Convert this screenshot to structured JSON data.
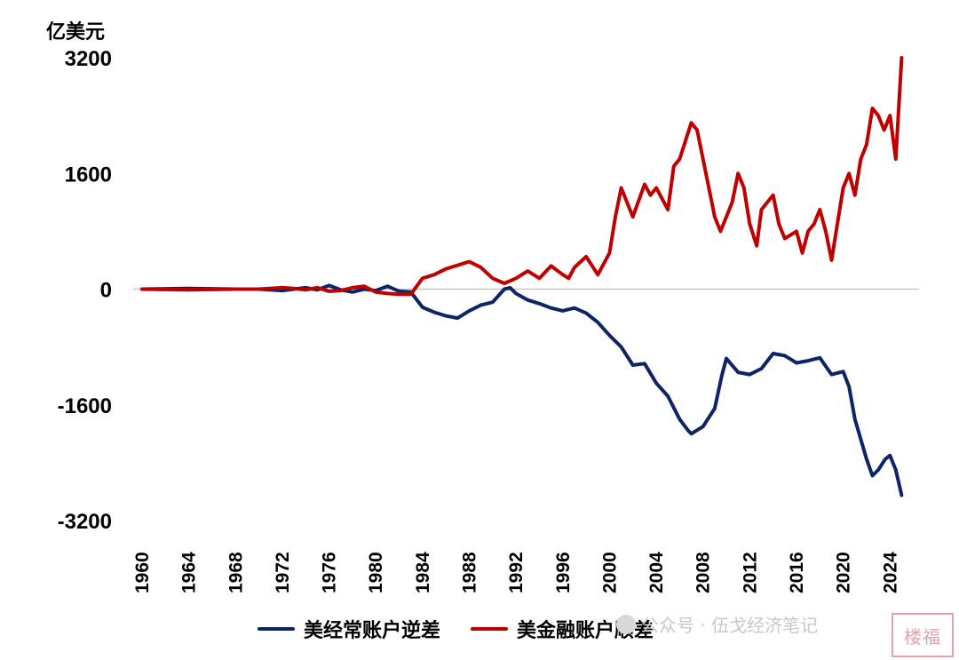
{
  "unit_label": "亿美元",
  "watermark": {
    "text": "公众号 · 伍戈经济笔记",
    "stamp_text": "楼福"
  },
  "colors": {
    "current_account": "#0d2466",
    "financial_account": "#c00000",
    "zero_line": "#bfbfbf"
  },
  "chart_data": {
    "type": "line",
    "title": "",
    "xlabel": "",
    "ylabel": "亿美元",
    "ylim": [
      -3200,
      3200
    ],
    "yticks": [
      3200,
      1600,
      0,
      -1600,
      -3200
    ],
    "xlim": [
      1960,
      2025.5
    ],
    "xticks": [
      "1960",
      "1964",
      "1968",
      "1972",
      "1976",
      "1980",
      "1984",
      "1988",
      "1992",
      "1996",
      "2000",
      "2004",
      "2008",
      "2012",
      "2016",
      "2020",
      "2024"
    ],
    "grid": false,
    "legend_position": "bottom",
    "series": [
      {
        "name": "美经常账户逆差",
        "color": "#0d2466",
        "x": [
          1960,
          1962,
          1964,
          1966,
          1968,
          1970,
          1972,
          1974,
          1975,
          1976,
          1977,
          1978,
          1979,
          1980,
          1981,
          1982,
          1983,
          1984,
          1985,
          1986,
          1987,
          1988,
          1989,
          1990,
          1991,
          1991.5,
          1992,
          1993,
          1994,
          1995,
          1996,
          1997,
          1998,
          1999,
          2000,
          2001,
          2002,
          2003,
          2004,
          2005,
          2006,
          2006.7,
          2007,
          2008,
          2009,
          2009.6,
          2010,
          2011,
          2012,
          2013,
          2014,
          2015,
          2016,
          2017,
          2018,
          2019,
          2020,
          2020.5,
          2021,
          2022,
          2022.5,
          2023,
          2023.6,
          2024,
          2024.5,
          2025
        ],
        "values": [
          0,
          5,
          10,
          5,
          0,
          0,
          -20,
          20,
          -10,
          50,
          -10,
          -40,
          0,
          -20,
          40,
          -30,
          -40,
          -250,
          -320,
          -370,
          -400,
          -300,
          -220,
          -180,
          0,
          20,
          -60,
          -150,
          -200,
          -260,
          -300,
          -260,
          -330,
          -460,
          -640,
          -800,
          -1050,
          -1030,
          -1300,
          -1480,
          -1800,
          -1950,
          -2000,
          -1900,
          -1650,
          -1200,
          -960,
          -1150,
          -1180,
          -1100,
          -890,
          -920,
          -1020,
          -990,
          -950,
          -1180,
          -1140,
          -1350,
          -1800,
          -2350,
          -2580,
          -2500,
          -2350,
          -2300,
          -2500,
          -2850
        ]
      },
      {
        "name": "美金融账户顺差",
        "color": "#c00000",
        "x": [
          1960,
          1962,
          1964,
          1966,
          1968,
          1970,
          1972,
          1973,
          1974,
          1975,
          1976,
          1977,
          1978,
          1979,
          1980,
          1981,
          1982,
          1983,
          1984,
          1985,
          1986,
          1987,
          1988,
          1989,
          1990,
          1991,
          1992,
          1993,
          1994,
          1995,
          1996,
          1996.5,
          1997,
          1998,
          1999,
          2000,
          2000.5,
          2001,
          2002,
          2003,
          2003.5,
          2004,
          2005,
          2005.5,
          2006,
          2007,
          2007.5,
          2008,
          2008.5,
          2009,
          2009.5,
          2010,
          2010.5,
          2011,
          2011.5,
          2012,
          2012.6,
          2013,
          2013.5,
          2014,
          2014.5,
          2015,
          2016,
          2016.5,
          2017,
          2017.5,
          2018,
          2018.5,
          2019,
          2019.5,
          2020,
          2020.5,
          2021,
          2021.5,
          2022,
          2022.5,
          2023,
          2023.5,
          2024,
          2024.5,
          2025
        ],
        "values": [
          0,
          -5,
          -10,
          -5,
          0,
          0,
          20,
          10,
          -10,
          20,
          -30,
          -20,
          20,
          40,
          -40,
          -60,
          -70,
          -70,
          150,
          200,
          280,
          330,
          380,
          300,
          150,
          80,
          150,
          250,
          150,
          320,
          200,
          150,
          300,
          450,
          200,
          500,
          1000,
          1400,
          1000,
          1450,
          1300,
          1400,
          1100,
          1700,
          1800,
          2300,
          2200,
          1800,
          1400,
          1000,
          800,
          1000,
          1200,
          1600,
          1400,
          900,
          600,
          1100,
          1200,
          1300,
          900,
          700,
          800,
          500,
          800,
          900,
          1100,
          800,
          400,
          900,
          1400,
          1600,
          1300,
          1800,
          2000,
          2500,
          2400,
          2200,
          2400,
          1800,
          3200
        ]
      }
    ]
  }
}
